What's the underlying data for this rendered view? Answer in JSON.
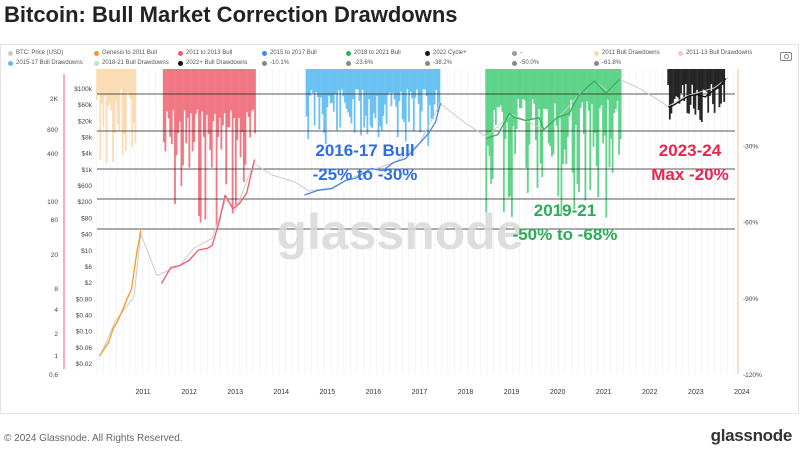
{
  "title": "Bitcoin: Bull Market Correction Drawdowns",
  "legend": [
    {
      "label": "BTC: Price (USD)",
      "color": "#cccccc"
    },
    {
      "label": "Genesis to 2011 Bull",
      "color": "#f59a23"
    },
    {
      "label": "2011 to 2013 Bull",
      "color": "#ef5b6b"
    },
    {
      "label": "2015 to 2017 Bull",
      "color": "#4a86e8"
    },
    {
      "label": "2018 to 2021 Bull",
      "color": "#2eb35a"
    },
    {
      "label": "2022 Cycle+",
      "color": "#111111"
    },
    {
      "label": "-",
      "color": "#999999"
    },
    {
      "label": "2011 Bull Drawdowns",
      "color": "#fcd9ad"
    },
    {
      "label": "2011-13 Bull Drawdowns",
      "color": "#f7c6cc"
    },
    {
      "label": "2015-17 Bull Drawdowns",
      "color": "#5dbcf2"
    },
    {
      "label": "2018-21 Bull Drawdowns",
      "color": "#b7e7c5"
    },
    {
      "label": "2022+ Bull Drawdowns",
      "color": "#111111"
    },
    {
      "label": "-10.1%",
      "color": "#888888"
    },
    {
      "label": "-23.6%",
      "color": "#888888"
    },
    {
      "label": "-38.2%",
      "color": "#888888"
    },
    {
      "label": "-50.0%",
      "color": "#888888"
    },
    {
      "label": "-61.8%",
      "color": "#888888"
    }
  ],
  "footer": {
    "copyright": "© 2024 Glassnode. All Rights Reserved.",
    "logo": "glassnode"
  },
  "chart_data": {
    "type": "line",
    "watermark": "glassnode",
    "scale": "log",
    "x_ticks": [
      "2011",
      "2012",
      "2013",
      "2014",
      "2015",
      "2016",
      "2017",
      "2018",
      "2019",
      "2020",
      "2021",
      "2022",
      "2023",
      "2024"
    ],
    "left_axis_a_ticks": [
      "2K",
      "800",
      "400",
      "100",
      "60",
      "20",
      "8",
      "4",
      "2",
      "1",
      "0.6"
    ],
    "left_axis_b_ticks": [
      "$100k",
      "$60k",
      "$20k",
      "$8k",
      "$4k",
      "$1k",
      "$600",
      "$200",
      "$80",
      "$40",
      "$10",
      "$6",
      "$2",
      "$0.80",
      "$0.40",
      "$0.10",
      "$0.06",
      "$0.02"
    ],
    "right_axis_ticks": [
      "-30%",
      "-60%",
      "-90%",
      "-120%"
    ],
    "right_axis_range": [
      -120,
      0
    ],
    "drawdown_levels": [
      -10.1,
      -23.6,
      -38.2,
      -50.0,
      -61.8
    ],
    "annotations": [
      {
        "line1": "2016-17 Bull",
        "line2": "-25% to -30%",
        "color": "#2f6ee0"
      },
      {
        "line1": "2019-21",
        "line2": "-50% to -68%",
        "color": "#2eaa58"
      },
      {
        "line1": "2023-24",
        "line2": "Max -20%",
        "color": "#e8264d"
      }
    ],
    "series": [
      {
        "name": "BTC: Price (USD)",
        "color": "#cccccc",
        "x": [
          2010.6,
          2010.9,
          2011.3,
          2011.45,
          2011.8,
          2012.3,
          2012.6,
          2013.0,
          2013.3,
          2013.5,
          2013.9,
          2014.3,
          2014.8,
          2015.1,
          2015.6,
          2016.0,
          2016.5,
          2017.0,
          2017.5,
          2017.95,
          2018.5,
          2018.95,
          2019.5,
          2019.9,
          2020.2,
          2020.6,
          2021.0,
          2021.3,
          2021.6,
          2021.85,
          2022.3,
          2022.9,
          2023.3,
          2023.9,
          2024.2
        ],
        "y": [
          0.06,
          0.3,
          1,
          25,
          3,
          5,
          12,
          20,
          150,
          80,
          900,
          500,
          350,
          220,
          260,
          430,
          650,
          1000,
          2500,
          19000,
          7000,
          3500,
          11000,
          7200,
          5000,
          11500,
          33000,
          60000,
          35000,
          65000,
          40000,
          16500,
          28000,
          42000,
          70000
        ]
      },
      {
        "name": "Genesis to 2011 Bull",
        "color": "#f59a23",
        "x": [
          2010.55,
          2010.65,
          2010.75,
          2010.85,
          2010.95,
          2011.05,
          2011.15,
          2011.25,
          2011.35,
          2011.45
        ],
        "y": [
          0.05,
          0.07,
          0.1,
          0.2,
          0.3,
          0.5,
          0.9,
          1.5,
          8,
          30
        ]
      },
      {
        "name": "2011 to 2013 Bull",
        "color": "#ef5b6b",
        "x": [
          2011.9,
          2012.1,
          2012.3,
          2012.5,
          2012.7,
          2012.9,
          2013.0,
          2013.15,
          2013.28,
          2013.45,
          2013.6,
          2013.75,
          2013.92
        ],
        "y": [
          2,
          4.5,
          5,
          6.5,
          11,
          12,
          14,
          45,
          180,
          90,
          120,
          200,
          1100
        ]
      },
      {
        "name": "2015 to 2017 Bull",
        "color": "#4a86e8",
        "x": [
          2015.0,
          2015.3,
          2015.6,
          2015.9,
          2016.1,
          2016.45,
          2016.7,
          2016.95,
          2017.2,
          2017.5,
          2017.7,
          2017.85,
          2017.96
        ],
        "y": [
          180,
          230,
          250,
          380,
          420,
          700,
          620,
          960,
          1150,
          2500,
          4200,
          7500,
          19500
        ]
      },
      {
        "name": "2018 to 2021 Bull",
        "color": "#2eb35a",
        "x": [
          2018.95,
          2019.2,
          2019.45,
          2019.55,
          2019.8,
          2020.1,
          2020.2,
          2020.5,
          2020.75,
          2020.95,
          2021.1,
          2021.3,
          2021.55,
          2021.85
        ],
        "y": [
          3200,
          3900,
          11500,
          9500,
          8000,
          9200,
          5000,
          9500,
          11500,
          28000,
          40000,
          60000,
          32000,
          66000
        ]
      },
      {
        "name": "2022 Cycle+",
        "color": "#111111",
        "x": [
          2022.9,
          2023.0,
          2023.2,
          2023.35,
          2023.55,
          2023.7,
          2023.85,
          2024.0,
          2024.15
        ],
        "y": [
          16000,
          17000,
          23000,
          28000,
          30000,
          26500,
          35000,
          44000,
          68000
        ]
      }
    ]
  }
}
